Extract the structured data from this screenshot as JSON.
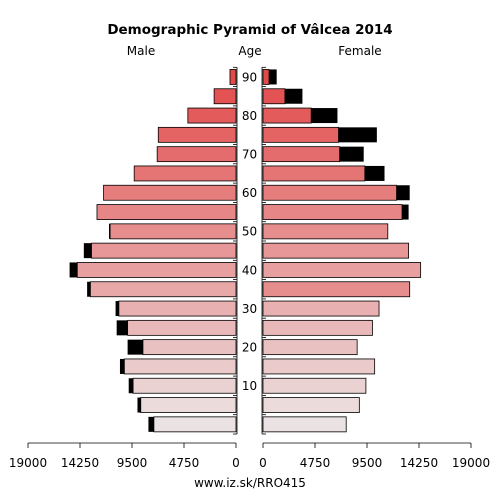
{
  "chart_data": {
    "type": "bar",
    "title": "Demographic Pyramid of Vâlcea 2014",
    "left_label": "Male",
    "center_label": "Age",
    "right_label": "Female",
    "footer": "www.iz.sk/RRO415",
    "xlim": [
      0,
      19000
    ],
    "x_ticks": [
      0,
      4750,
      9500,
      14250,
      19000
    ],
    "age_ticks": [
      10,
      20,
      30,
      40,
      50,
      60,
      70,
      80,
      90
    ],
    "age_groups": [
      "0-4",
      "5-9",
      "10-14",
      "15-19",
      "20-24",
      "25-29",
      "30-34",
      "35-39",
      "40-44",
      "45-49",
      "50-54",
      "55-59",
      "60-64",
      "65-69",
      "70-74",
      "75-79",
      "80-84",
      "85-89",
      "90+"
    ],
    "series": [
      {
        "name": "Male",
        "values": [
          7500,
          8700,
          9400,
          10200,
          8500,
          9900,
          10700,
          13300,
          14500,
          13200,
          11500,
          12700,
          12100,
          9300,
          7200,
          7100,
          4400,
          2000,
          550
        ]
      },
      {
        "name": "Male surplus",
        "values": [
          500,
          300,
          400,
          400,
          1400,
          1000,
          300,
          300,
          700,
          700,
          100,
          0,
          0,
          0,
          0,
          0,
          0,
          0,
          0
        ]
      },
      {
        "name": "Female",
        "values": [
          7600,
          8800,
          9400,
          10200,
          8600,
          10000,
          10600,
          13400,
          14400,
          13300,
          11400,
          12700,
          12200,
          9300,
          7000,
          6900,
          4400,
          2000,
          550
        ]
      },
      {
        "name": "Female surplus",
        "values": [
          0,
          0,
          0,
          0,
          0,
          0,
          0,
          0,
          0,
          0,
          0,
          600,
          1200,
          1800,
          2200,
          3500,
          2400,
          1600,
          700
        ]
      }
    ],
    "colors": {
      "bar_light": "#ebe3e3",
      "bar_dark": "#e24a4a",
      "surplus": "#000000",
      "female_35_39": "#e68e8e"
    }
  }
}
